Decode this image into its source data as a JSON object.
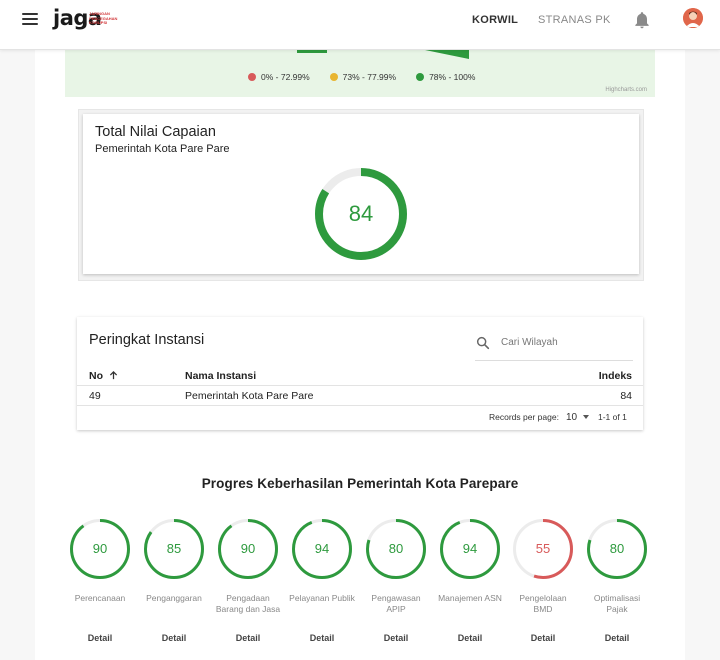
{
  "header": {
    "logo_text": "jaga",
    "logo_tagline": [
      "JARINGAN",
      "PENCEGAHAN",
      "KORUPSI"
    ],
    "nav": [
      {
        "label": "KORWIL"
      },
      {
        "label": "STRANAS PK"
      }
    ],
    "icons": [
      "menu-icon",
      "bell-icon",
      "avatar-icon"
    ]
  },
  "map_legend": {
    "items": [
      {
        "label": "0% - 72.99%",
        "color": "#d85a5a"
      },
      {
        "label": "73% - 77.99%",
        "color": "#e8b530"
      },
      {
        "label": "78% - 100%",
        "color": "#2e9a3e"
      }
    ],
    "credit": "Highcharts.com"
  },
  "total": {
    "title": "Total Nilai Capaian",
    "subtitle": "Pemerintah Kota Pare Pare",
    "value": "84",
    "percent": 84,
    "color": "#2e9a3e"
  },
  "ranking": {
    "title": "Peringkat Instansi",
    "search_placeholder": "Cari Wilayah",
    "columns": {
      "no": "No",
      "nama": "Nama Instansi",
      "indeks": "Indeks"
    },
    "rows": [
      {
        "no": "49",
        "nama": "Pemerintah Kota Pare Pare",
        "indeks": "84"
      }
    ],
    "records_label": "Records per page:",
    "records_value": "10",
    "range": "1-1 of 1"
  },
  "progress": {
    "title": "Progres Keberhasilan Pemerintah Kota Parepare",
    "detail_label": "Detail",
    "items": [
      {
        "value": "90",
        "percent": 90,
        "label": "Perencanaan",
        "color": "#2e9a3e"
      },
      {
        "value": "85",
        "percent": 85,
        "label": "Penganggaran",
        "color": "#2e9a3e"
      },
      {
        "value": "90",
        "percent": 90,
        "label": "Pengadaan Barang dan Jasa",
        "color": "#2e9a3e"
      },
      {
        "value": "94",
        "percent": 94,
        "label": "Pelayanan Publik",
        "color": "#2e9a3e"
      },
      {
        "value": "80",
        "percent": 80,
        "label": "Pengawasan APIP",
        "color": "#2e9a3e"
      },
      {
        "value": "94",
        "percent": 94,
        "label": "Manajemen ASN",
        "color": "#2e9a3e"
      },
      {
        "value": "55",
        "percent": 55,
        "label": "Pengelolaan BMD",
        "color": "#d85a5a"
      },
      {
        "value": "80",
        "percent": 80,
        "label": "Optimalisasi Pajak",
        "color": "#2e9a3e"
      }
    ]
  }
}
